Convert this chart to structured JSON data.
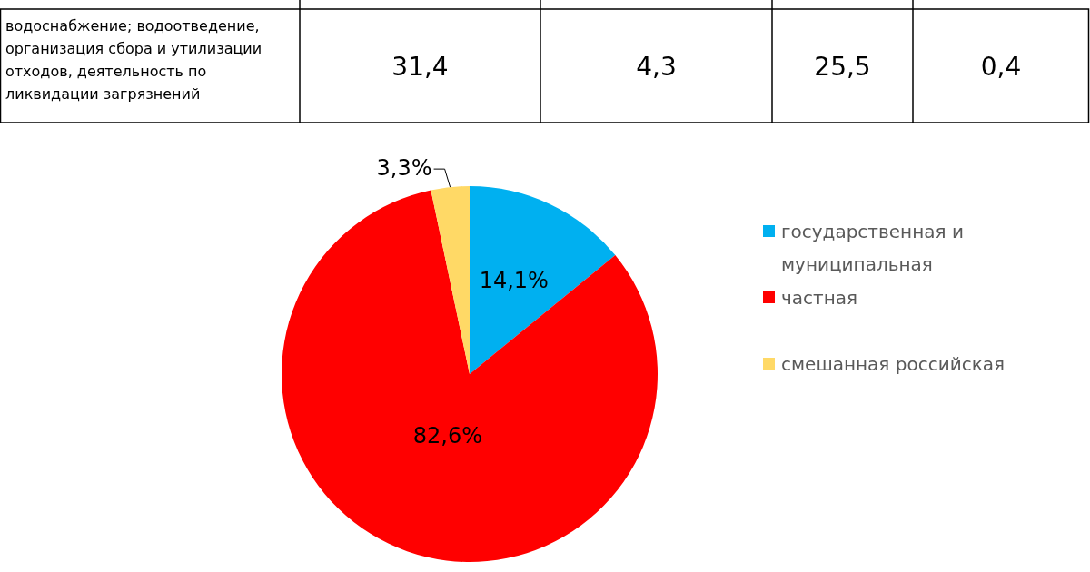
{
  "chart_data": [
    {
      "type": "other",
      "annotations": [
        "водоснабжение; водоотведение, организация сбора и утилизации отходов, деятельность по ликвидации загрязнений",
        "31,4",
        "4,3",
        "25,5",
        "0,4"
      ]
    },
    {
      "type": "pie",
      "categories": [
        "государственная и муниципальная",
        "частная",
        "смешанная российская"
      ],
      "values": [
        14.1,
        82.6,
        3.3
      ],
      "colors": [
        "#00b0f0",
        "#ff0000",
        "#ffd966"
      ],
      "value_labels": [
        "14,1%",
        "82,6%",
        "3,3%"
      ],
      "legend": "right"
    }
  ]
}
